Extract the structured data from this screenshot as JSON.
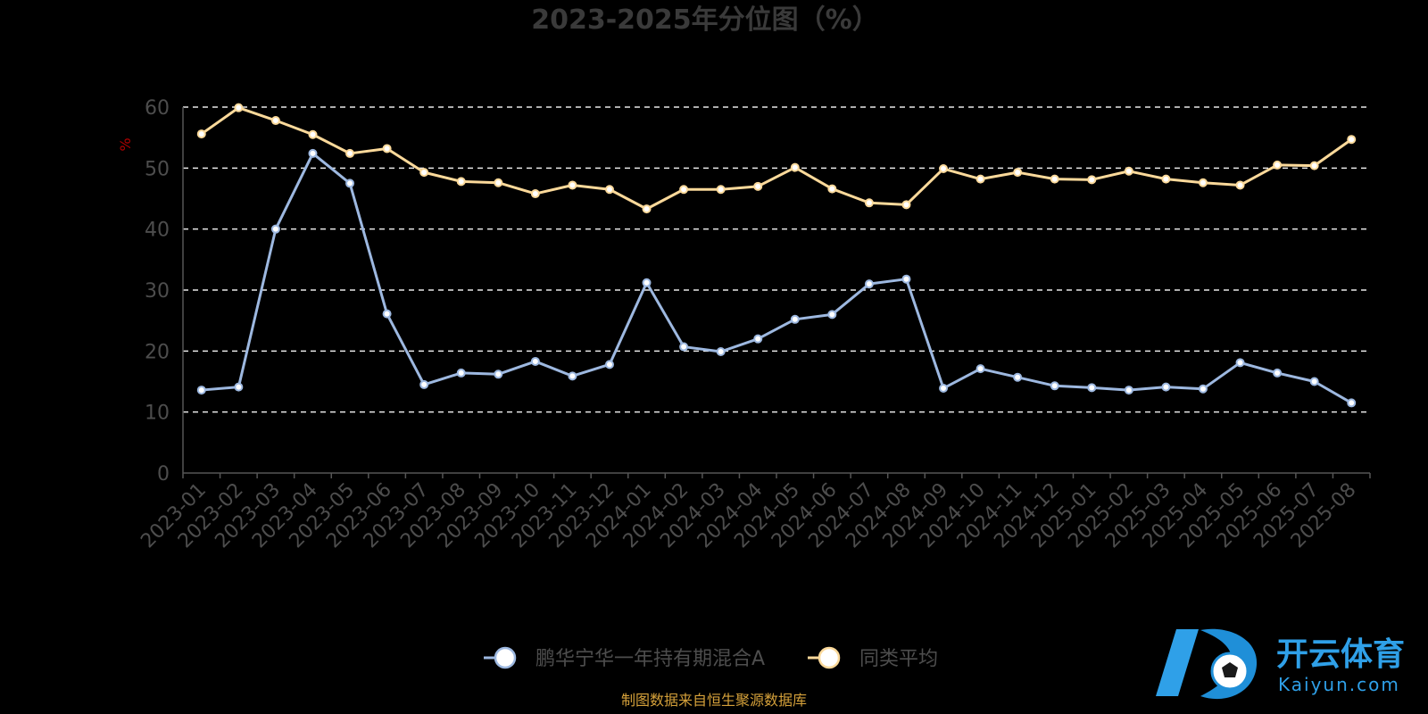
{
  "chart_data": {
    "type": "line",
    "title": "2023-2025年分位图（%）",
    "ylabel": "%",
    "ylim": [
      0,
      60
    ],
    "yticks": [
      "0",
      "10",
      "20",
      "30",
      "40",
      "50",
      "60"
    ],
    "grid": true,
    "legend_position": "bottom",
    "categories": [
      "2023-01",
      "2023-02",
      "2023-03",
      "2023-04",
      "2023-05",
      "2023-06",
      "2023-07",
      "2023-08",
      "2023-09",
      "2023-10",
      "2023-11",
      "2023-12",
      "2024-01",
      "2024-02",
      "2024-03",
      "2024-04",
      "2024-05",
      "2024-06",
      "2024-07",
      "2024-08",
      "2024-09",
      "2024-10",
      "2024-11",
      "2024-12",
      "2025-01",
      "2025-02",
      "2025-03",
      "2025-04",
      "2025-05",
      "2025-06",
      "2025-07",
      "2025-08"
    ],
    "series": [
      {
        "name": "鹏华宁华一年持有期混合A",
        "color": "#9db8e0",
        "values": [
          13.6,
          14.1,
          40.0,
          52.4,
          47.5,
          26.1,
          14.5,
          16.4,
          16.2,
          18.3,
          15.9,
          17.8,
          31.2,
          20.7,
          19.9,
          22.0,
          25.2,
          26.0,
          31.0,
          31.8,
          13.9,
          17.1,
          15.7,
          14.3,
          14.0,
          13.6,
          14.1,
          13.8,
          18.1,
          16.4,
          15.0,
          11.5
        ]
      },
      {
        "name": "同类平均",
        "color": "#fbd99a",
        "values": [
          55.6,
          59.9,
          57.8,
          55.5,
          52.4,
          53.2,
          49.3,
          47.8,
          47.6,
          45.8,
          47.2,
          46.5,
          43.3,
          46.5,
          46.5,
          47.0,
          50.1,
          46.6,
          44.3,
          44.0,
          49.9,
          48.2,
          49.3,
          48.2,
          48.1,
          49.5,
          48.2,
          47.6,
          47.2,
          50.5,
          50.4,
          54.7
        ]
      }
    ]
  },
  "source_note": "制图数据来自恒生聚源数据库",
  "watermark": {
    "name": "开云体育",
    "url": "Kaiyun.com",
    "color": "#2fa0e8"
  }
}
